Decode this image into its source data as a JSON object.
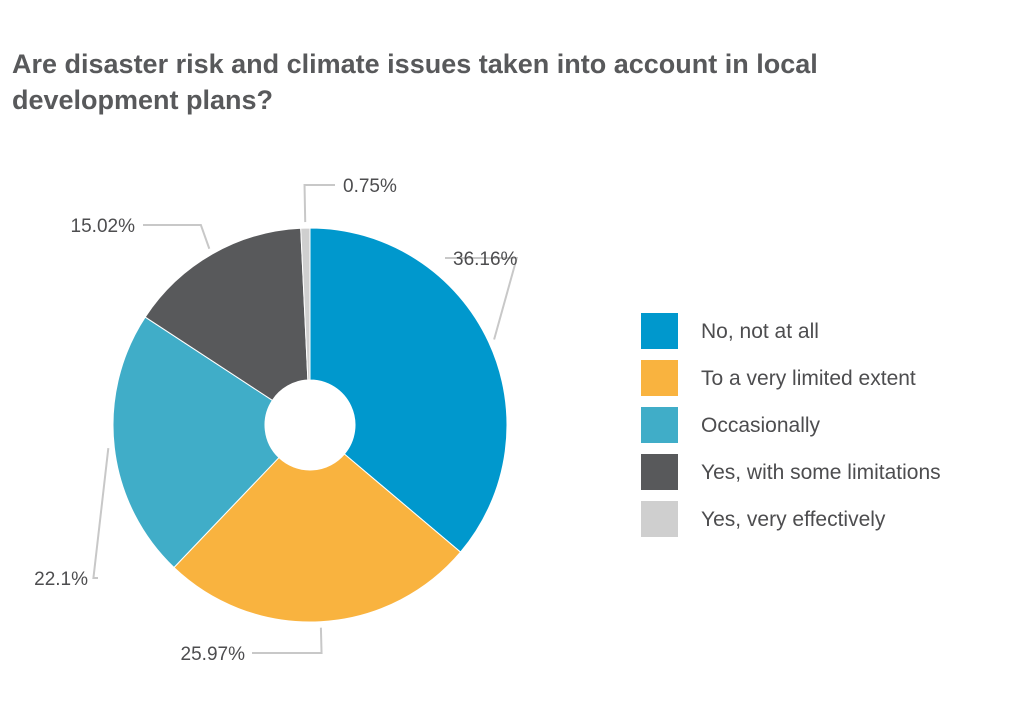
{
  "chart_data": {
    "type": "pie",
    "title": "Are disaster risk and climate issues taken into account in local development plans?",
    "legend_position": "right",
    "categories": [
      "No, not at all",
      "To a very limited extent",
      "Occasionally",
      "Yes, with some limitations",
      "Yes, very effectively"
    ],
    "values": [
      36.16,
      25.97,
      22.1,
      15.02,
      0.75
    ],
    "labels": [
      "36.16%",
      "25.97%",
      "22.1%",
      "15.02%",
      "0.75%"
    ],
    "colors": [
      "#0098cd",
      "#f9b33f",
      "#40adc8",
      "#58595b",
      "#cfcfcf"
    ]
  }
}
